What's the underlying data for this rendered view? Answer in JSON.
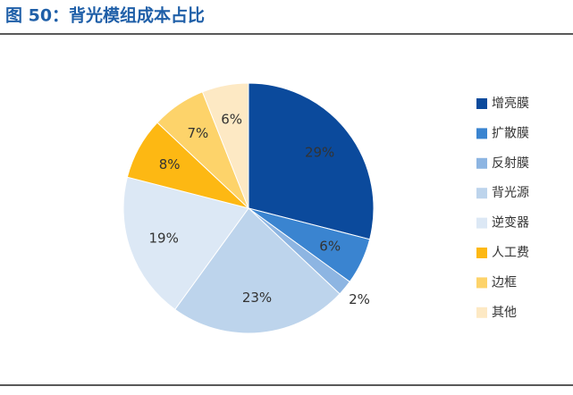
{
  "chart_data": {
    "type": "pie",
    "title": "图 50：背光模组成本占比",
    "categories": [
      "增亮膜",
      "扩散膜",
      "反射膜",
      "背光源",
      "逆变器",
      "人工费",
      "边框",
      "其他"
    ],
    "values": [
      29,
      6,
      2,
      23,
      19,
      8,
      7,
      6
    ],
    "value_labels": [
      "29%",
      "6%",
      "2%",
      "23%",
      "19%",
      "8%",
      "7%",
      "6%"
    ],
    "colors": [
      "#0b4a9c",
      "#3a84d0",
      "#8db5e2",
      "#bdd4ec",
      "#dce8f5",
      "#fdb813",
      "#fdd36a",
      "#fde9c4"
    ],
    "legend": "right"
  }
}
